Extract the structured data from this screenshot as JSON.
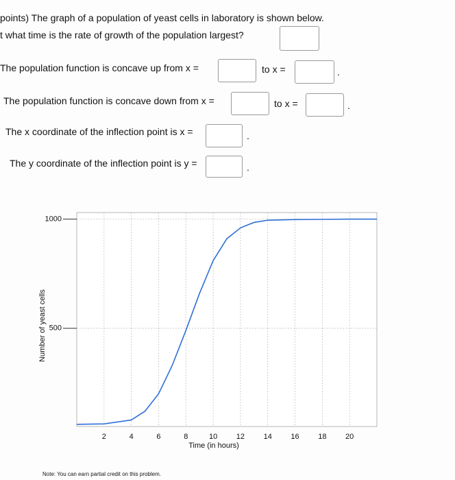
{
  "question": {
    "intro": "points) The graph of a population of yeast cells in laboratory is shown below.",
    "rate": "t what time is the rate of growth of the population largest?",
    "concave_up": {
      "text": "The population function is concave up from x =",
      "to": "to x =",
      "end": "."
    },
    "concave_down": {
      "text": "The population function is concave down from x =",
      "to": "to x =",
      "end": "."
    },
    "inflection_x": {
      "text": "The x coordinate of the inflection point is x =",
      "end": "."
    },
    "inflection_y": {
      "text": "The y coordinate of the inflection point is y =",
      "end": "."
    }
  },
  "chart_data": {
    "type": "line",
    "x_label": "Time (in hours)",
    "y_label": "Number of yeast cells",
    "x": [
      0,
      2,
      4,
      5,
      6,
      7,
      8,
      9,
      10,
      11,
      12,
      13,
      14,
      16,
      18,
      20,
      22
    ],
    "series": [
      {
        "color": "#2f6fd6",
        "values": [
          60,
          62,
          80,
          120,
          200,
          330,
          490,
          660,
          810,
          910,
          960,
          985,
          995,
          998,
          999,
          1000,
          1000
        ]
      }
    ],
    "xlim": [
      0,
      22
    ],
    "ylim": [
      50,
      1030
    ],
    "xticks": [
      2,
      4,
      6,
      8,
      10,
      12,
      14,
      16,
      18,
      20
    ],
    "yticks": [
      500,
      1000
    ],
    "grid": true
  },
  "note": "Note: You can earn partial credit on this problem."
}
